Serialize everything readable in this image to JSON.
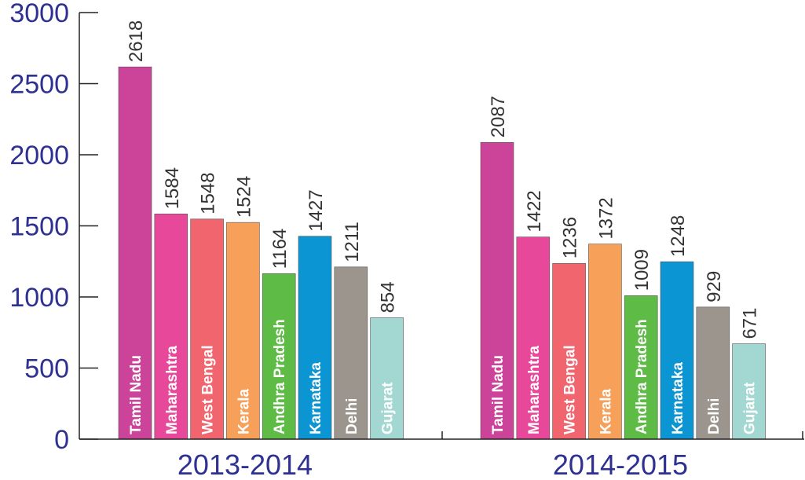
{
  "chart_data": {
    "type": "bar",
    "title": "",
    "xlabel": "",
    "ylabel": "",
    "ylim": [
      0,
      3000
    ],
    "yticks": [
      0,
      500,
      1000,
      1500,
      2000,
      2500,
      3000
    ],
    "groups": [
      "2013-2014",
      "2014-2015"
    ],
    "categories": [
      "Tamil Nadu",
      "Maharashtra",
      "West Bengal",
      "Kerala",
      "Andhra Pradesh",
      "Karnataka",
      "Delhi",
      "Gujarat"
    ],
    "colors": [
      "#cc4499",
      "#e8489a",
      "#f0656e",
      "#f7a05a",
      "#5dbb46",
      "#0b95d2",
      "#9b958d",
      "#a3d8d2"
    ],
    "series": [
      {
        "group": "2013-2014",
        "values": [
          2618,
          1584,
          1548,
          1524,
          1164,
          1427,
          1211,
          854
        ]
      },
      {
        "group": "2014-2015",
        "values": [
          2087,
          1422,
          1236,
          1372,
          1009,
          1248,
          929,
          671
        ]
      }
    ],
    "grid": false,
    "legend": "none"
  }
}
